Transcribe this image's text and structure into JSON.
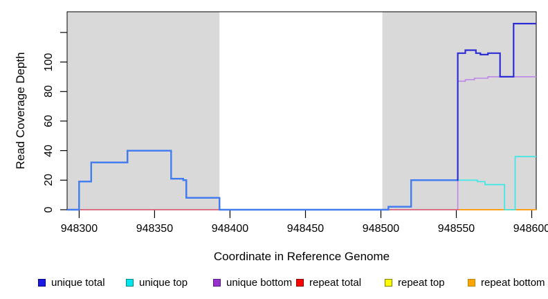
{
  "chart_data": {
    "type": "step-line",
    "title": "",
    "xlabel": "Coordinate in Reference Genome",
    "ylabel": "Read Coverage Depth",
    "xlim": [
      948292,
      948603
    ],
    "ylim": [
      0,
      134
    ],
    "x_ticks": [
      948300,
      948350,
      948400,
      948450,
      948500,
      948550,
      948600
    ],
    "y_ticks": [
      0,
      20,
      40,
      60,
      80,
      100,
      120
    ],
    "y_tick_labels": [
      "0",
      "20",
      "40",
      "60",
      "80",
      "100",
      ""
    ],
    "grid": false,
    "legend_position": "bottom",
    "shade_color": "#d9d9d9",
    "box_color": "#000000",
    "shaded_regions": [
      [
        948292,
        948393
      ],
      [
        948501,
        948603
      ]
    ],
    "series": [
      {
        "name": "unique total",
        "legend_color": "#1a1ae0",
        "legend_border": "#00008b",
        "line_color": "#2d2dd6",
        "overlap_blend_color": "#3e7ef2",
        "blend_partner": "unique top",
        "z": 6,
        "width": 2.2,
        "points": [
          [
            948292,
            0
          ],
          [
            948300,
            19
          ],
          [
            948308,
            32
          ],
          [
            948332,
            40
          ],
          [
            948361,
            21
          ],
          [
            948369,
            20
          ],
          [
            948371,
            8
          ],
          [
            948393,
            0
          ],
          [
            948505,
            2
          ],
          [
            948520,
            20
          ],
          [
            948551,
            106
          ],
          [
            948556,
            108
          ],
          [
            948563,
            106
          ],
          [
            948566,
            105
          ],
          [
            948571,
            106
          ],
          [
            948579,
            90
          ],
          [
            948588,
            126
          ],
          [
            948603,
            126
          ]
        ]
      },
      {
        "name": "unique top",
        "legend_color": "#00e5ee",
        "legend_border": "#008b8b",
        "line_color": "#45e6e6",
        "z": 5,
        "width": 1.8,
        "points": [
          [
            948292,
            0
          ],
          [
            948300,
            19
          ],
          [
            948308,
            32
          ],
          [
            948332,
            40
          ],
          [
            948361,
            21
          ],
          [
            948369,
            20
          ],
          [
            948371,
            8
          ],
          [
            948393,
            0
          ],
          [
            948505,
            2
          ],
          [
            948520,
            20
          ],
          [
            948551,
            20
          ],
          [
            948564,
            19
          ],
          [
            948569,
            17
          ],
          [
            948582,
            0
          ],
          [
            948589,
            36
          ],
          [
            948603,
            36
          ]
        ]
      },
      {
        "name": "unique bottom",
        "legend_color": "#9932cc",
        "legend_border": "#551a8b",
        "line_color": "#bd85e8",
        "z": 2,
        "width": 1.6,
        "points": [
          [
            948292,
            0
          ],
          [
            948551,
            87
          ],
          [
            948556,
            88
          ],
          [
            948562,
            89
          ],
          [
            948571,
            90
          ],
          [
            948603,
            90
          ]
        ]
      },
      {
        "name": "repeat total",
        "legend_color": "#ff0000",
        "legend_border": "#8b0000",
        "line_color": "#d8587a",
        "z": 3,
        "width": 1.6,
        "points": [
          [
            948292,
            0
          ],
          [
            948603,
            0
          ]
        ]
      },
      {
        "name": "repeat top",
        "legend_color": "#ffff00",
        "legend_border": "#808000",
        "line_color": "#ffff00",
        "z": 1,
        "width": 1.6,
        "points": [
          [
            948292,
            0
          ],
          [
            948603,
            0
          ]
        ]
      },
      {
        "name": "repeat bottom",
        "legend_color": "#ffa500",
        "legend_border": "#b8860b",
        "line_color": "#ff9f1a",
        "z": 4,
        "width": 2,
        "points": [
          [
            948552,
            0
          ],
          [
            948603,
            0
          ]
        ]
      }
    ]
  }
}
